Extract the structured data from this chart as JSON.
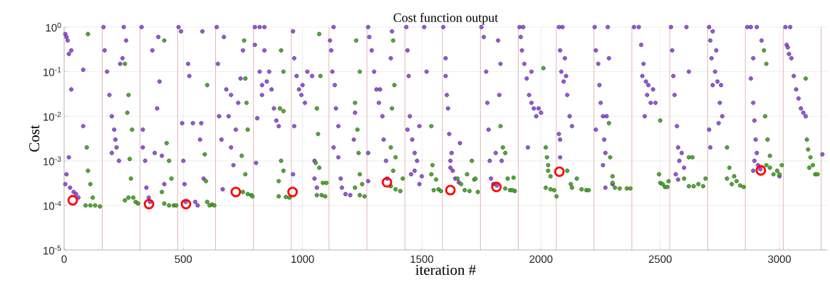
{
  "chart_data": {
    "type": "scatter",
    "title": "Cost function output",
    "xlabel": "iteration #",
    "ylabel": "Cost",
    "xlim": [
      0,
      3200
    ],
    "xticks": [
      0,
      500,
      1000,
      1500,
      2000,
      2500,
      3000
    ],
    "ylim": [
      1e-05,
      1
    ],
    "yticks": [
      {
        "value": 1e-05,
        "label": "10$^{-5}$"
      },
      {
        "value": 0.0001,
        "label": "10$^{-4}$"
      },
      {
        "value": 0.001,
        "label": "10$^{-3}$"
      },
      {
        "value": 0.01,
        "label": "10$^{-2}$"
      },
      {
        "value": 0.1,
        "label": "10$^{-1}$"
      },
      {
        "value": 1,
        "label": "10$^{0}$"
      }
    ],
    "log": "y",
    "grid": true,
    "marker": "circle",
    "ref_lines": [
      {
        "axis": "x",
        "value": 160,
        "color": "#d8a4a4"
      },
      {
        "axis": "x",
        "value": 318,
        "color": "#d8a4a4"
      },
      {
        "axis": "x",
        "value": 476,
        "color": "#d8a4a4"
      },
      {
        "axis": "x",
        "value": 635,
        "color": "#d8a4a4"
      },
      {
        "axis": "x",
        "value": 794,
        "color": "#d8a4a4"
      },
      {
        "axis": "x",
        "value": 953,
        "color": "#d8a4a4"
      },
      {
        "axis": "x",
        "value": 1111,
        "color": "#d8a4a4"
      },
      {
        "axis": "x",
        "value": 1270,
        "color": "#d8a4a4"
      },
      {
        "axis": "x",
        "value": 1429,
        "color": "#d8a4a4"
      },
      {
        "axis": "x",
        "value": 1587,
        "color": "#d8a4a4"
      },
      {
        "axis": "x",
        "value": 1746,
        "color": "#d8a4a4"
      },
      {
        "axis": "x",
        "value": 1905,
        "color": "#d8a4a4"
      },
      {
        "axis": "x",
        "value": 2064,
        "color": "#d8a4a4"
      },
      {
        "axis": "x",
        "value": 2222,
        "color": "#d8a4a4"
      },
      {
        "axis": "x",
        "value": 2381,
        "color": "#d8a4a4"
      },
      {
        "axis": "x",
        "value": 2540,
        "color": "#d8a4a4"
      },
      {
        "axis": "x",
        "value": 2699,
        "color": "#d8a4a4"
      },
      {
        "axis": "x",
        "value": 2857,
        "color": "#d8a4a4"
      },
      {
        "axis": "x",
        "value": 3016,
        "color": "#d8a4a4"
      },
      {
        "axis": "x",
        "value": 3175,
        "color": "#d8a4a4"
      }
    ],
    "series": [
      {
        "color": "#9b52e8",
        "x": [
          5,
          10,
          15,
          20,
          30,
          30,
          5,
          10,
          20,
          25,
          40,
          50,
          60,
          80,
          80,
          165,
          170,
          180,
          190,
          200,
          215,
          220,
          230,
          250,
          245,
          200,
          210,
          260,
          235,
          325,
          330,
          340,
          345,
          355,
          370,
          380,
          390,
          395,
          400,
          410,
          420,
          360,
          330,
          480,
          490,
          495,
          500,
          505,
          510,
          520,
          525,
          540,
          550,
          560,
          580,
          575,
          570,
          585,
          640,
          645,
          650,
          660,
          670,
          680,
          690,
          700,
          710,
          720,
          730,
          740,
          750,
          700,
          665,
          800,
          820,
          840,
          800,
          820,
          830,
          840,
          850,
          860,
          870,
          880,
          890,
          900,
          810,
          805,
          830,
          960,
          965,
          975,
          985,
          995,
          1000,
          1010,
          1020,
          965,
          960,
          1040,
          1050,
          1050,
          1060,
          1115,
          1120,
          1125,
          1130,
          1135,
          1140,
          1130,
          1150,
          1160,
          1165,
          1180,
          1200,
          1215,
          1220,
          1150,
          1275,
          1280,
          1290,
          1300,
          1310,
          1320,
          1325,
          1335,
          1340,
          1350,
          1355,
          1275,
          1375,
          1370,
          1275,
          1435,
          1440,
          1445,
          1450,
          1460,
          1470,
          1480,
          1490,
          1440,
          1455,
          1470,
          1490,
          1510,
          1520,
          1500,
          1590,
          1600,
          1605,
          1610,
          1615,
          1620,
          1625,
          1630,
          1640,
          1655,
          1660,
          1620,
          1600,
          1750,
          1760,
          1770,
          1775,
          1780,
          1785,
          1790,
          1800,
          1810,
          1820,
          1830,
          1825,
          1815,
          1835,
          1910,
          1925,
          1915,
          1920,
          1930,
          1940,
          1950,
          1960,
          1970,
          1980,
          1990,
          2000,
          1945,
          1960,
          2075,
          2090,
          2080,
          2085,
          2100,
          2105,
          2110,
          2120,
          2130,
          2080,
          2080,
          2075,
          2095,
          2225,
          2230,
          2240,
          2245,
          2250,
          2260,
          2265,
          2270,
          2230,
          2260,
          2270,
          2280,
          2285,
          2275,
          2300,
          2390,
          2410,
          2420,
          2430,
          2440,
          2445,
          2450,
          2460,
          2425,
          2435,
          2470,
          2480,
          2545,
          2550,
          2555,
          2560,
          2570,
          2580,
          2575,
          2590,
          2600,
          2565,
          2610,
          2620,
          2575,
          2705,
          2710,
          2715,
          2720,
          2730,
          2735,
          2740,
          2750,
          2755,
          2760,
          2745,
          2705,
          2710,
          2720,
          2865,
          2880,
          2905,
          2890,
          2880,
          2890,
          2895,
          2900,
          2905,
          2895,
          2910,
          2920,
          2890,
          2925,
          3000,
          3025,
          3045,
          3030,
          3040,
          3050,
          3060,
          3070,
          3080,
          3090,
          3100,
          3110,
          3035,
          3180
        ],
        "values": [
          0.7,
          0.6,
          0.5,
          0.25,
          0.04,
          0.3,
          0.0003,
          0.0005,
          0.0012,
          0.00025,
          0.0002,
          0.00018,
          0.00015,
          0.11,
          0.006,
          1,
          0.3,
          0.1,
          0.03,
          0.01,
          0.003,
          0.002,
          0.001,
          1,
          0.2,
          0.0015,
          0.005,
          0.5,
          0.15,
          1,
          0.005,
          0.001,
          0.00025,
          0.00015,
          0.3,
          0.0015,
          0.015,
          0.6,
          0.06,
          0.0013,
          0.0003,
          0.00012,
          0.002,
          1,
          0.8,
          0.007,
          0.001,
          0.0003,
          0.00012,
          0.15,
          0.08,
          0.007,
          0.00012,
          0.0001,
          0.8,
          0.007,
          0.003,
          0.0004,
          1,
          0.15,
          0.01,
          0.003,
          0.6,
          0.04,
          0.01,
          0.002,
          0.0008,
          0.005,
          0.02,
          0.07,
          0.3,
          0.03,
          0.00023,
          1,
          1,
          1,
          0.4,
          0.1,
          0.05,
          0.3,
          0.06,
          0.1,
          0.04,
          0.015,
          0.008,
          0.006,
          0.009,
          0.0009,
          0.03,
          0.8,
          0.2,
          0.08,
          0.04,
          0.03,
          0.05,
          0.02,
          0.1,
          0.006,
          0.0005,
          0.08,
          0.001,
          0.0004,
          0.00025,
          0.5,
          0.3,
          0.1,
          1,
          0.05,
          0.015,
          0.002,
          0.006,
          0.0004,
          0.00025,
          0.00018,
          0.00017,
          0.003,
          0.012,
          0.0012,
          1,
          0.6,
          0.3,
          0.1,
          0.04,
          0.02,
          0.04,
          0.01,
          0.003,
          0.001,
          0.0004,
          0.0015,
          0.8,
          0.2,
          0.00035,
          1,
          0.3,
          0.08,
          0.01,
          0.003,
          0.0015,
          0.001,
          0.006,
          0.005,
          0.0005,
          0.0006,
          0.0003,
          1,
          0.1,
          0.00045,
          1,
          0.2,
          0.03,
          0.015,
          0.004,
          0.001,
          0.0015,
          0.0006,
          0.0004,
          0.00033,
          0.0025,
          0.0007,
          0.08,
          1,
          0.6,
          0.1,
          0.02,
          0.005,
          0.001,
          0.0004,
          0.0003,
          0.0015,
          0.5,
          0.15,
          0.03,
          0.00028,
          0.001,
          1,
          1,
          0.6,
          0.3,
          0.15,
          0.07,
          0.03,
          0.02,
          0.015,
          0.01,
          0.015,
          0.012,
          0.002,
          0.1,
          1,
          1,
          0.3,
          0.1,
          0.2,
          0.08,
          0.03,
          0.01,
          0.006,
          0.003,
          0.0012,
          0.004,
          0.06,
          1,
          0.3,
          0.15,
          0.05,
          0.02,
          0.01,
          0.003,
          0.0015,
          0.005,
          0.0008,
          0.00025,
          1,
          0.2,
          0.01,
          0.0003,
          1,
          1,
          0.4,
          0.15,
          0.06,
          0.03,
          0.05,
          0.02,
          0.08,
          0.01,
          0.04,
          0.02,
          1,
          0.3,
          0.08,
          0.03,
          0.006,
          0.001,
          0.002,
          0.0015,
          0.0007,
          0.0005,
          1,
          0.1,
          0.00038,
          1,
          0.5,
          0.2,
          0.05,
          0.1,
          0.3,
          0.06,
          0.02,
          0.05,
          0.01,
          0.007,
          0.005,
          0.002,
          0.8,
          1,
          1,
          1,
          0.2,
          0.07,
          0.02,
          0.008,
          0.003,
          0.0015,
          0.001,
          0.0008,
          0.00065,
          0.0006,
          0.5,
          0.00045,
          1,
          1,
          0.4,
          0.25,
          0.2,
          0.08,
          0.04,
          0.025,
          0.015,
          0.012,
          0.01,
          0.35,
          0.0014
        ]
      },
      {
        "color": "#4caf2a",
        "x": [
          100,
          95,
          100,
          110,
          90,
          110,
          130,
          150,
          120,
          255,
          270,
          265,
          275,
          255,
          280,
          290,
          300,
          310,
          285,
          270,
          420,
          430,
          440,
          450,
          410,
          420,
          440,
          460,
          470,
          600,
          590,
          595,
          600,
          620,
          630,
          610,
          755,
          760,
          765,
          770,
          745,
          760,
          750,
          770,
          785,
          790,
          910,
          920,
          905,
          920,
          910,
          920,
          900,
          900,
          930,
          945,
          1070,
          1075,
          1060,
          1065,
          1055,
          1070,
          1060,
          1080,
          1095,
          1085,
          1100,
          1225,
          1220,
          1230,
          1235,
          1240,
          1220,
          1240,
          1260,
          1250,
          1240,
          1380,
          1375,
          1385,
          1370,
          1390,
          1380,
          1370,
          1390,
          1410,
          1420,
          1540,
          1545,
          1540,
          1550,
          1560,
          1570,
          1580,
          1650,
          1665,
          1680,
          1700,
          1720,
          1690,
          1710,
          1735,
          1725,
          1830,
          1840,
          1850,
          1860,
          1850,
          1870,
          1885,
          1890,
          1880,
          2010,
          2020,
          2025,
          2030,
          2030,
          2040,
          2020,
          2040,
          2055,
          2065,
          2110,
          2125,
          2130,
          2150,
          2170,
          2190,
          2200,
          2285,
          2290,
          2300,
          2300,
          2310,
          2330,
          2360,
          2375,
          2500,
          2495,
          2500,
          2510,
          2520,
          2530,
          2535,
          2620,
          2635,
          2600,
          2620,
          2640,
          2660,
          2680,
          2690,
          2780,
          2790,
          2780,
          2800,
          2810,
          2820,
          2835,
          2850,
          2935,
          2945,
          2940,
          2950,
          2960,
          2945,
          2960,
          2975,
          2990,
          3000,
          3010,
          3110,
          3115,
          3120,
          3130,
          3125,
          3140,
          3150,
          3160
        ],
        "values": [
          0.7,
          0.002,
          0.0006,
          0.0003,
          0.0001,
          0.0001,
          0.0001,
          9.5e-05,
          0.00015,
          0.15,
          0.03,
          0.012,
          0.0011,
          0.00013,
          0.0004,
          0.00015,
          0.00012,
          0.00011,
          0.005,
          0.00015,
          0.5,
          0.0025,
          0.001,
          0.0004,
          0.0002,
          0.00011,
          0.0001,
          0.0001,
          0.0001,
          0.05,
          0.0014,
          0.00035,
          0.00012,
          0.000105,
          0.0001,
          0.0001,
          0.5,
          0.07,
          0.02,
          0.005,
          0.0013,
          0.0005,
          0.0002,
          0.00018,
          0.00017,
          0.00016,
          0.3,
          0.1,
          0.015,
          0.013,
          0.001,
          0.0006,
          0.00035,
          0.00016,
          0.000155,
          0.00015,
          0.7,
          0.08,
          0.015,
          0.004,
          0.0009,
          0.0007,
          0.00017,
          0.00017,
          0.00016,
          0.00032,
          0.00032,
          0.5,
          0.02,
          0.005,
          0.0015,
          0.0005,
          0.00025,
          0.00017,
          0.00016,
          0.0003,
          0.1,
          0.5,
          0.015,
          0.05,
          0.002,
          0.0012,
          0.0006,
          0.00027,
          0.00023,
          0.00021,
          0.0004,
          0.006,
          0.0008,
          0.0005,
          0.00022,
          0.00038,
          0.00023,
          0.00021,
          0.0004,
          0.0003,
          0.00022,
          0.00021,
          0.00038,
          0.0005,
          0.001,
          0.0002,
          0.0004,
          0.006,
          0.002,
          0.0015,
          0.0004,
          0.00024,
          0.00022,
          0.00042,
          0.00021,
          0.00022,
          0.12,
          0.002,
          0.0012,
          0.0008,
          0.0006,
          0.00045,
          0.00025,
          0.00023,
          0.00022,
          0.00016,
          0.0006,
          0.0003,
          0.00025,
          0.0004,
          0.00023,
          0.00022,
          0.00022,
          0.007,
          0.0012,
          0.00045,
          0.00032,
          0.00025,
          0.00024,
          0.00024,
          0.00024,
          0.008,
          0.0005,
          0.00032,
          0.0003,
          0.00026,
          0.00026,
          0.00035,
          0.0012,
          0.0012,
          0.0004,
          0.00027,
          0.00027,
          0.0003,
          0.00027,
          0.0004,
          0.002,
          0.0007,
          0.0004,
          0.0003,
          0.00045,
          0.00035,
          0.00028,
          0.00026,
          0.3,
          0.15,
          0.01,
          0.003,
          0.0013,
          0.0008,
          0.0007,
          0.0005,
          0.0006,
          0.0005,
          0.0008,
          0.07,
          0.003,
          0.0018,
          0.0012,
          0.0007,
          0.0008,
          0.0005,
          0.0005
        ]
      },
      {
        "color": "#ff0000",
        "marker": "circle",
        "x": [
          36,
          356,
          511,
          720,
          958,
          1354,
          1620,
          1813,
          2077,
          2922
        ],
        "values": [
          0.00013,
          0.000107,
          0.000107,
          0.0002,
          0.0002,
          0.00033,
          0.00022,
          0.00026,
          0.00057,
          0.00061
        ]
      }
    ]
  }
}
